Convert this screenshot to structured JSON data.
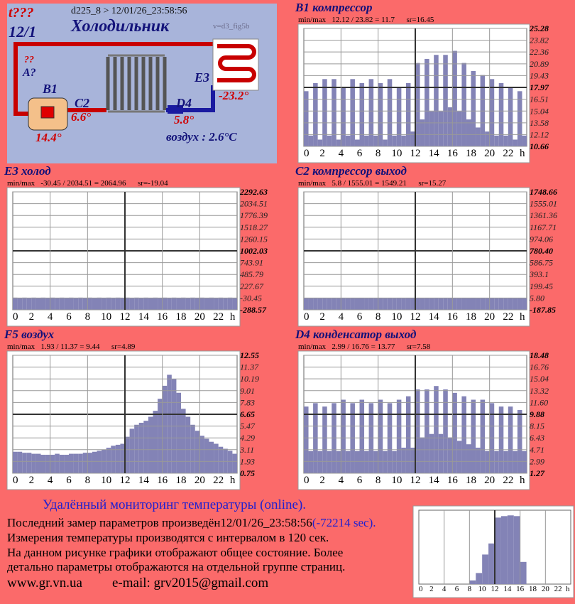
{
  "diagram": {
    "alarm": "t???",
    "date": "12/1",
    "header": "d225_8  >  12/01/26_23:58:56",
    "title": "Холодильник",
    "version": "v=d3_fig5b",
    "q1": "??",
    "a_label": "A?",
    "b1_label": "B1",
    "b1_value": "14.4°",
    "c2_label": "C2",
    "c2_value": "6.6°",
    "d4_label": "D4",
    "d4_value": "5.8°",
    "e3_label": "E3",
    "e3_value": "-23.2°",
    "air": "воздух : 2.6°C"
  },
  "footer": {
    "heading": "Удалённый мониторинг температуры (online).",
    "line1": "Последний замер параметров произведён12/01/26_23:58:56",
    "line1_age": "(-72214 sec).",
    "line2": "Измерения температуры  производятся с интервалом в 120 сек.",
    "line3": "На данном рисунке графики отображают общее состояние. Более",
    "line4": "детально параметры отображаются на отдельной группе страниц.",
    "site": "www.gr.vn.ua",
    "email": "e-mail: grv2015@gmail.com"
  },
  "chart_data": [
    {
      "type": "area",
      "title": "B1 компрессор",
      "subtitle": "min/max   12.12 / 23.82 = 11.7      sr=16.45",
      "color": "#8383b6",
      "grid": true,
      "x": [
        0,
        0.5,
        1,
        1.5,
        2,
        2.5,
        3,
        3.5,
        4,
        4.5,
        5,
        5.5,
        6,
        6.5,
        7,
        7.5,
        8,
        8.5,
        9,
        9.5,
        10,
        10.5,
        11,
        11.5,
        12,
        12.5,
        13,
        13.5,
        14,
        14.5,
        15,
        15.5,
        16,
        16.5,
        17,
        17.5,
        18,
        18.5,
        19,
        19.5,
        20,
        20.5,
        21,
        21.5,
        22,
        22.5,
        23,
        23.5
      ],
      "values": [
        17.5,
        12,
        18.5,
        11.5,
        19,
        12,
        19,
        11.5,
        18,
        12,
        19,
        11.5,
        18.5,
        12,
        19,
        12,
        18.5,
        11.5,
        19,
        12,
        18,
        12,
        18.5,
        12.5,
        21,
        14,
        21.5,
        15,
        22,
        15,
        22,
        15.5,
        22.5,
        15,
        21,
        14,
        20,
        13,
        19.5,
        12.5,
        19,
        12,
        18.5,
        12,
        18,
        11.5,
        17.5,
        12
      ],
      "xlim": [
        0,
        24
      ],
      "xticks": [
        0,
        2,
        4,
        6,
        8,
        10,
        12,
        14,
        16,
        18,
        20,
        22
      ],
      "x_unit": "h",
      "ylim": [
        10.66,
        25.28
      ],
      "yticks": [
        25.28,
        23.82,
        22.36,
        20.89,
        19.43,
        17.97,
        16.51,
        15.04,
        13.58,
        12.12,
        10.66
      ]
    },
    {
      "type": "area",
      "title": "E3 холод",
      "subtitle": "min/max   -30.45 / 2034.51 = 2064.96      sr=-19.04",
      "color": "#8383b6",
      "grid": true,
      "x": [
        0,
        0.5,
        1,
        1.5,
        2,
        2.5,
        3,
        3.5,
        4,
        4.5,
        5,
        5.5,
        6,
        6.5,
        7,
        7.5,
        8,
        8.5,
        9,
        9.5,
        10,
        10.5,
        11,
        11.5,
        12,
        12.5,
        13,
        13.5,
        14,
        14.5,
        15,
        15.5,
        16,
        16.5,
        17,
        17.5,
        18,
        18.5,
        19,
        19.5,
        20,
        20.5,
        21,
        21.5,
        22,
        22.5,
        23,
        23.5
      ],
      "values": [
        -22,
        -25,
        -22,
        -25,
        -22,
        -25,
        -22,
        -25,
        -22,
        -25,
        -22,
        -25,
        -22,
        -25,
        -22,
        -25,
        -22,
        -25,
        -22,
        -25,
        -22,
        -25,
        -22,
        -25,
        -22,
        -25,
        -22,
        -25,
        -22,
        -25,
        -22,
        -25,
        -22,
        -25,
        -22,
        -25,
        -22,
        -25,
        -22,
        -25,
        -22,
        -25,
        -22,
        -25,
        -22,
        -25,
        -22,
        -25
      ],
      "xlim": [
        0,
        24
      ],
      "xticks": [
        0,
        2,
        4,
        6,
        8,
        10,
        12,
        14,
        16,
        18,
        20,
        22
      ],
      "x_unit": "h",
      "ylim": [
        -288.57,
        2292.63
      ],
      "yticks": [
        2292.63,
        2034.51,
        1776.39,
        1518.27,
        1260.15,
        1002.03,
        743.91,
        485.79,
        227.67,
        -30.45,
        -288.57
      ]
    },
    {
      "type": "area",
      "title": "C2 компрессор выход",
      "subtitle": "min/max   5.8 / 1555.01 = 1549.21      sr=15.27",
      "color": "#8383b6",
      "grid": true,
      "x": [
        0,
        0.5,
        1,
        1.5,
        2,
        2.5,
        3,
        3.5,
        4,
        4.5,
        5,
        5.5,
        6,
        6.5,
        7,
        7.5,
        8,
        8.5,
        9,
        9.5,
        10,
        10.5,
        11,
        11.5,
        12,
        12.5,
        13,
        13.5,
        14,
        14.5,
        15,
        15.5,
        16,
        16.5,
        17,
        17.5,
        18,
        18.5,
        19,
        19.5,
        20,
        20.5,
        21,
        21.5,
        22,
        22.5,
        23,
        23.5
      ],
      "values": [
        8,
        4,
        8,
        4,
        8,
        4,
        8,
        4,
        8,
        4,
        8,
        4,
        8,
        4,
        8,
        4,
        8,
        4,
        8,
        4,
        8,
        4,
        8,
        4,
        8,
        4,
        8,
        4,
        8,
        4,
        8,
        4,
        8,
        4,
        8,
        4,
        8,
        4,
        8,
        4,
        8,
        4,
        8,
        4,
        8,
        4,
        8,
        4
      ],
      "xlim": [
        0,
        24
      ],
      "xticks": [
        0,
        2,
        4,
        6,
        8,
        10,
        12,
        14,
        16,
        18,
        20,
        22
      ],
      "x_unit": "h",
      "ylim": [
        -187.85,
        1748.66
      ],
      "yticks": [
        1748.66,
        1555.01,
        1361.36,
        1167.71,
        974.06,
        {
          "value": 780.4,
          "label": "780.40"
        },
        586.75,
        393.1,
        199.45,
        {
          "value": 5.8,
          "label": "5.80"
        },
        -187.85
      ]
    },
    {
      "type": "area",
      "title": "F5 воздух",
      "subtitle": "min/max   1.93 / 11.37 = 9.44      sr=4.89",
      "color": "#8383b6",
      "grid": true,
      "x": [
        0,
        0.5,
        1,
        1.5,
        2,
        2.5,
        3,
        3.5,
        4,
        4.5,
        5,
        5.5,
        6,
        6.5,
        7,
        7.5,
        8,
        8.5,
        9,
        9.5,
        10,
        10.5,
        11,
        11.5,
        12,
        12.5,
        13,
        13.5,
        14,
        14.5,
        15,
        15.5,
        16,
        16.5,
        17,
        17.5,
        18,
        18.5,
        19,
        19.5,
        20,
        20.5,
        21,
        21.5,
        22,
        22.5,
        23,
        23.5
      ],
      "values": [
        2.9,
        2.9,
        2.8,
        2.8,
        2.7,
        2.7,
        2.6,
        2.6,
        2.6,
        2.7,
        2.6,
        2.6,
        2.7,
        2.7,
        2.7,
        2.8,
        2.8,
        2.9,
        3,
        3.1,
        3.3,
        3.5,
        3.6,
        3.7,
        4.4,
        5.2,
        5.6,
        5.8,
        6,
        6.4,
        7,
        8.2,
        9.5,
        10.6,
        10.2,
        8.8,
        7.2,
        6.4,
        5.6,
        5,
        4.5,
        4.2,
        3.9,
        3.7,
        3.4,
        3.2,
        3,
        2.7
      ],
      "xlim": [
        0,
        24
      ],
      "xticks": [
        0,
        2,
        4,
        6,
        8,
        10,
        12,
        14,
        16,
        18,
        20,
        22
      ],
      "x_unit": "h",
      "ylim": [
        0.75,
        12.55
      ],
      "yticks": [
        12.55,
        11.37,
        10.19,
        9.01,
        7.83,
        6.65,
        5.47,
        4.29,
        3.11,
        1.93,
        0.75
      ]
    },
    {
      "type": "area",
      "title": "D4 конденсатор выход",
      "subtitle": "min/max   2.99 / 16.76 = 13.77      sr=7.58",
      "color": "#8383b6",
      "grid": true,
      "x": [
        0,
        0.5,
        1,
        1.5,
        2,
        2.5,
        3,
        3.5,
        4,
        4.5,
        5,
        5.5,
        6,
        6.5,
        7,
        7.5,
        8,
        8.5,
        9,
        9.5,
        10,
        10.5,
        11,
        11.5,
        12,
        12.5,
        13,
        13.5,
        14,
        14.5,
        15,
        15.5,
        16,
        16.5,
        17,
        17.5,
        18,
        18.5,
        19,
        19.5,
        20,
        20.5,
        21,
        21.5,
        22,
        22.5,
        23,
        23.5
      ],
      "values": [
        11,
        4.5,
        11.5,
        4.5,
        11,
        4.5,
        11.5,
        4.5,
        12,
        4.5,
        11.5,
        4.5,
        12,
        4.5,
        11.5,
        4.5,
        12,
        4.5,
        11.5,
        4.5,
        12,
        5,
        12.5,
        5,
        13.5,
        6.5,
        13.5,
        7,
        14,
        7,
        13.5,
        6.5,
        13,
        6,
        12.5,
        5.5,
        12,
        5,
        12,
        4.5,
        11.5,
        4.5,
        11,
        4.5,
        11,
        4.5,
        10.5,
        4.5
      ],
      "xlim": [
        0,
        24
      ],
      "xticks": [
        0,
        2,
        4,
        6,
        8,
        10,
        12,
        14,
        16,
        18,
        20,
        22
      ],
      "x_unit": "h",
      "ylim": [
        1.27,
        18.48
      ],
      "yticks": [
        18.48,
        16.76,
        15.04,
        13.32,
        {
          "value": 11.6,
          "label": "11.60"
        },
        9.88,
        8.15,
        6.43,
        4.71,
        2.99,
        1.27
      ]
    },
    {
      "type": "area",
      "color": "#8383b6",
      "grid": true,
      "x": [
        0,
        1,
        2,
        3,
        4,
        5,
        6,
        7,
        8,
        9,
        10,
        11,
        12,
        13,
        14,
        15,
        16,
        17,
        18,
        19,
        20,
        21,
        22,
        23
      ],
      "values": [
        0,
        0,
        0,
        0,
        0,
        0,
        0,
        0,
        5,
        15,
        40,
        55,
        90,
        92,
        93,
        92,
        30,
        0,
        0,
        0,
        0,
        0,
        0,
        0
      ],
      "xlim": [
        0,
        24
      ],
      "xticks": [
        0,
        2,
        4,
        6,
        8,
        10,
        12,
        14,
        16,
        18,
        20,
        22
      ],
      "x_unit": "h",
      "ylim": [
        0,
        100
      ]
    }
  ]
}
